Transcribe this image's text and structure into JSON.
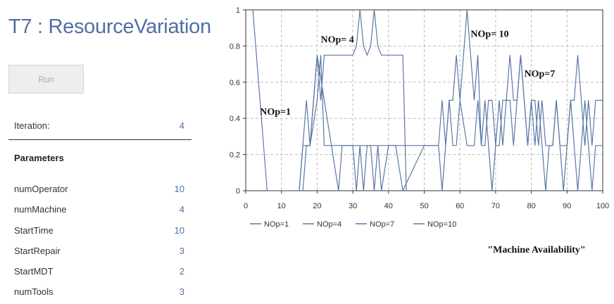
{
  "panel": {
    "title": "T7 : ResourceVariation",
    "run_label": "Run",
    "iteration_label": "Iteration:",
    "iteration_value": "4",
    "parameters_header": "Parameters",
    "parameters": [
      {
        "name": "numOperator",
        "value": "10"
      },
      {
        "name": "numMachine",
        "value": "4"
      },
      {
        "name": "StartTime",
        "value": "10"
      },
      {
        "name": "StartRepair",
        "value": "3"
      },
      {
        "name": "StartMDT",
        "value": "2"
      },
      {
        "name": "numTools",
        "value": "3"
      }
    ]
  },
  "colors": {
    "accent": "#4f6fa3",
    "series": "#5a77a8",
    "grid": "#bdbdbd"
  },
  "chart_data": {
    "type": "line",
    "xlim": [
      0,
      100
    ],
    "ylim": [
      0,
      1
    ],
    "xticks": [
      "0",
      "10",
      "20",
      "30",
      "40",
      "50",
      "60",
      "70",
      "80",
      "90",
      "100"
    ],
    "yticks": [
      "0",
      "0.2",
      "0.4",
      "0.6",
      "0.8",
      "1"
    ],
    "grid": true,
    "legend_position": "bottom",
    "caption": "\"Machine Availability\"",
    "annotations": [
      {
        "text": "NOp=1",
        "x": 4,
        "y": 0.42
      },
      {
        "text": "NOp= 4",
        "x": 21,
        "y": 0.82
      },
      {
        "text": "NOp= 10",
        "x": 63,
        "y": 0.85
      },
      {
        "text": "NOp=7",
        "x": 78,
        "y": 0.63
      }
    ],
    "series": [
      {
        "name": "NOp=1",
        "x": [
          2,
          6,
          15,
          16,
          17,
          18,
          19,
          20,
          22,
          24,
          26
        ],
        "y": [
          1,
          0,
          0,
          0.25,
          0.5,
          0.25,
          0.5,
          0.75,
          0.5,
          0.25,
          0
        ]
      },
      {
        "name": "NOp=4",
        "x": [
          16,
          17,
          18,
          19,
          20,
          21,
          22,
          23,
          30,
          31,
          32,
          33,
          34,
          35,
          36,
          37,
          38,
          44,
          45
        ],
        "y": [
          0,
          0.25,
          0.25,
          0.5,
          0.75,
          0.5,
          0.75,
          0.75,
          0.75,
          0.8,
          1,
          0.8,
          0.75,
          0.8,
          1,
          0.8,
          0.75,
          0.75,
          0
        ],
        "extra": true
      },
      {
        "name": "NOp=7",
        "x": [
          15,
          16,
          18,
          20,
          21,
          22,
          30,
          31,
          32,
          33,
          34,
          35,
          36,
          37,
          38,
          40,
          42,
          44,
          50,
          52,
          54,
          55,
          56,
          57,
          58,
          59,
          60,
          62,
          64,
          65,
          66,
          67,
          68,
          69,
          70,
          71,
          72,
          73,
          74,
          75,
          76,
          77,
          78,
          79,
          80,
          81,
          82,
          83,
          84,
          85,
          86,
          87,
          88,
          89,
          90,
          91,
          92,
          93,
          94,
          95,
          96,
          97,
          98,
          100
        ],
        "y": [
          0,
          0.25,
          0.25,
          0.5,
          0.75,
          0.25,
          0.25,
          0,
          0.25,
          0,
          0.25,
          0.25,
          0,
          0.25,
          0,
          0.25,
          0.25,
          0,
          0.25,
          0.25,
          0.25,
          0.5,
          0.25,
          0.5,
          0.25,
          0.25,
          0.5,
          0.25,
          0.25,
          0.5,
          0.25,
          0.5,
          0.25,
          0,
          0.25,
          0.5,
          0.25,
          0.5,
          0.5,
          0.25,
          0.5,
          0.75,
          0.5,
          0.25,
          0.5,
          0.25,
          0.5,
          0.25,
          0,
          0.25,
          0.25,
          0.5,
          0.25,
          0,
          0.25,
          0.5,
          0.25,
          0,
          0.25,
          0.5,
          0.25,
          0,
          0.25,
          0.25
        ]
      },
      {
        "name": "NOp=10",
        "x": [
          26,
          27,
          28,
          30,
          32,
          34,
          36,
          38,
          40,
          42,
          44,
          50,
          54,
          55,
          56,
          57,
          58,
          59,
          60,
          61,
          62,
          63,
          64,
          65,
          66,
          67,
          68,
          69,
          70,
          71,
          72,
          73,
          74,
          75,
          76,
          77,
          78,
          79,
          80,
          81,
          82,
          83,
          84,
          85,
          86,
          87,
          88,
          89,
          90,
          91,
          92,
          93,
          94,
          95,
          96,
          97,
          98,
          100
        ],
        "y": [
          0,
          0.25,
          0.25,
          0.25,
          0.25,
          0.25,
          0.25,
          0.25,
          0.25,
          0.25,
          0.25,
          0.25,
          0.25,
          0,
          0.25,
          0.5,
          0.5,
          0.75,
          0.5,
          0.75,
          1,
          0.75,
          0.5,
          0.75,
          0.25,
          0.25,
          0.5,
          0.5,
          0.25,
          0.25,
          0.5,
          0.5,
          0.75,
          0.5,
          0.5,
          0.75,
          0.5,
          0.25,
          0.5,
          0.5,
          0.25,
          0.5,
          0.25,
          0.25,
          0.25,
          0.5,
          0.25,
          0.25,
          0.25,
          0.5,
          0.5,
          0.75,
          0.5,
          0.25,
          0.5,
          0.25,
          0.5,
          0.5
        ]
      }
    ]
  }
}
